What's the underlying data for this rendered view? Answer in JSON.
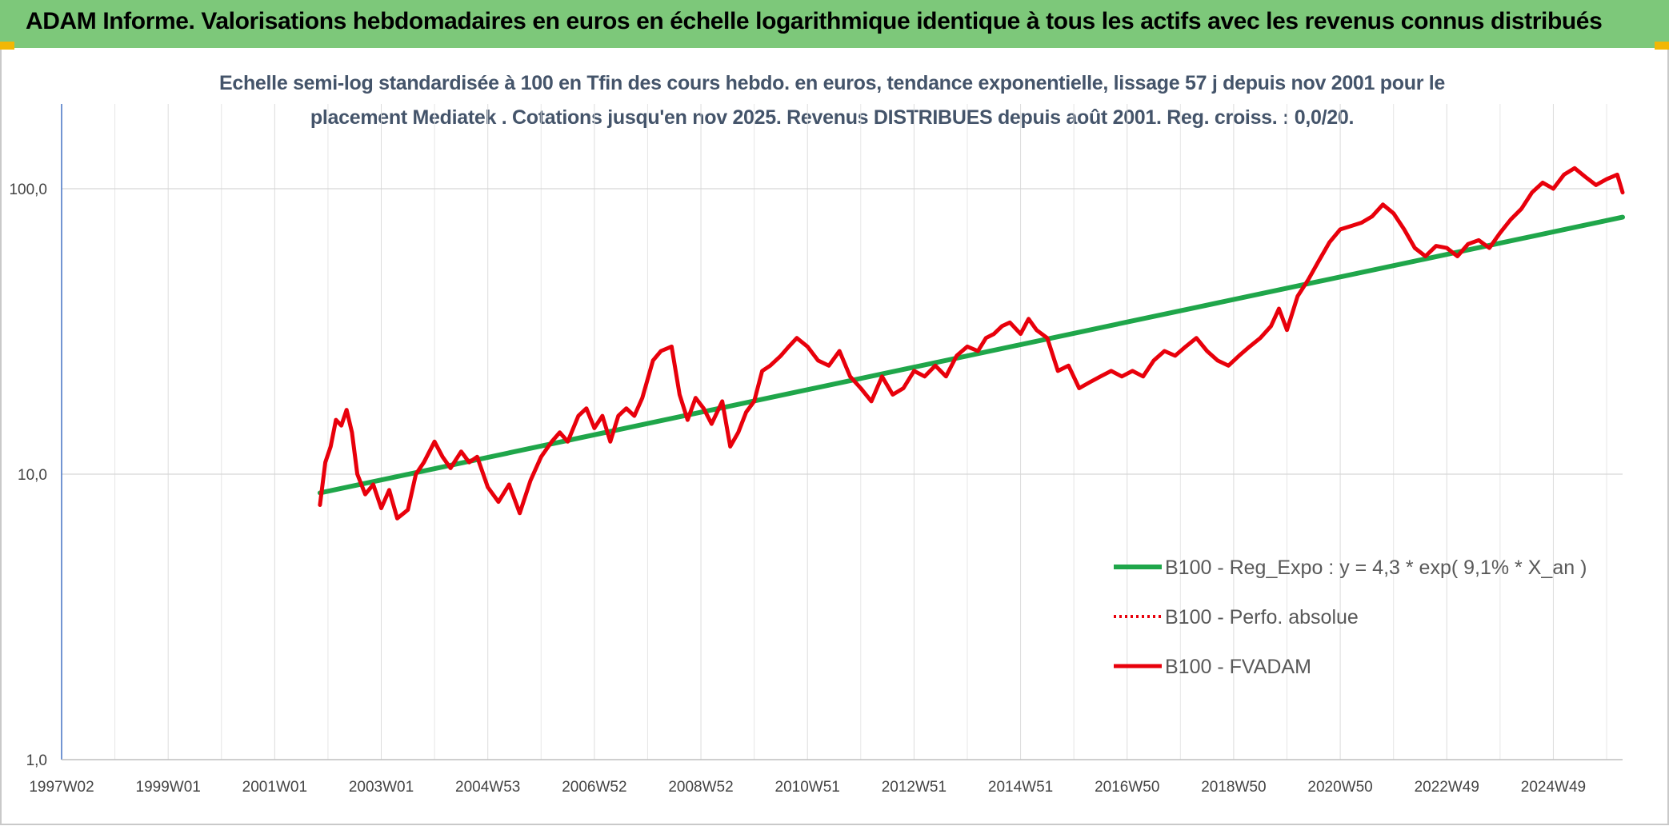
{
  "header": {
    "title": "ADAM Informe. Valorisations hebdomadaires en euros en échelle logarithmique identique à tous les actifs avec les revenus connus distribués"
  },
  "chart_data": {
    "type": "line",
    "title_lines": [
      "Echelle semi-log standardisée à 100 en Tfin des cours hebdo. en euros, tendance exponentielle, lissage 57 j depuis nov 2001 pour le",
      "placement Mediatek . Cotations jusqu'en nov 2025. Revenus DISTRIBUES depuis août 2001. Reg. croiss. : 0,0/20."
    ],
    "y_scale": "log",
    "ylim": [
      1,
      200
    ],
    "y_ticks": [
      1,
      10,
      100
    ],
    "y_tick_labels": [
      "1,0",
      "10,0",
      "100,0"
    ],
    "xlim": [
      1997.0,
      2026.3
    ],
    "x_ticks": [
      1997.0,
      1999.0,
      2001.0,
      2003.0,
      2005.0,
      2007.0,
      2009.0,
      2011.0,
      2013.0,
      2015.0,
      2017.0,
      2019.0,
      2021.0,
      2023.0,
      2025.0
    ],
    "x_tick_labels": [
      "1997W02",
      "1999W01",
      "2001W01",
      "2003W01",
      "2004W53",
      "2006W52",
      "2008W52",
      "2010W51",
      "2012W51",
      "2014W51",
      "2016W50",
      "2018W50",
      "2020W50",
      "2022W49",
      "2024W49"
    ],
    "grid": true,
    "legend_position": "bottom-right",
    "colors": {
      "trend": "#1fa64a",
      "fvadam": "#e8000b",
      "perfo": "#e8000b"
    },
    "series": [
      {
        "name": "B100 - Reg_Expo : y = 4,3 * exp( 9,1% *  X_an )",
        "style": "solid-green",
        "x": [
          2001.85,
          2026.3
        ],
        "values": [
          8.6,
          79.5
        ]
      },
      {
        "name": "B100 - Perfo. absolue",
        "style": "dotted-red",
        "x": [],
        "values": []
      },
      {
        "name": "B100 - FVADAM",
        "style": "solid-red",
        "x": [
          2001.85,
          2001.95,
          2002.05,
          2002.15,
          2002.25,
          2002.35,
          2002.45,
          2002.55,
          2002.7,
          2002.85,
          2003.0,
          2003.15,
          2003.3,
          2003.5,
          2003.65,
          2003.8,
          2004.0,
          2004.15,
          2004.3,
          2004.5,
          2004.65,
          2004.8,
          2005.0,
          2005.2,
          2005.4,
          2005.6,
          2005.8,
          2006.0,
          2006.2,
          2006.35,
          2006.5,
          2006.7,
          2006.85,
          2007.0,
          2007.15,
          2007.3,
          2007.45,
          2007.6,
          2007.75,
          2007.9,
          2008.1,
          2008.25,
          2008.45,
          2008.6,
          2008.75,
          2008.9,
          2009.05,
          2009.2,
          2009.4,
          2009.55,
          2009.7,
          2009.85,
          2010.0,
          2010.15,
          2010.3,
          2010.5,
          2010.65,
          2010.8,
          2011.0,
          2011.2,
          2011.4,
          2011.6,
          2011.8,
          2012.0,
          2012.2,
          2012.4,
          2012.6,
          2012.8,
          2013.0,
          2013.2,
          2013.4,
          2013.6,
          2013.8,
          2014.0,
          2014.2,
          2014.35,
          2014.5,
          2014.65,
          2014.8,
          2015.0,
          2015.15,
          2015.3,
          2015.5,
          2015.7,
          2015.9,
          2016.1,
          2016.3,
          2016.5,
          2016.7,
          2016.9,
          2017.1,
          2017.3,
          2017.5,
          2017.7,
          2017.9,
          2018.1,
          2018.3,
          2018.5,
          2018.7,
          2018.9,
          2019.1,
          2019.3,
          2019.5,
          2019.7,
          2019.85,
          2020.0,
          2020.2,
          2020.4,
          2020.6,
          2020.8,
          2021.0,
          2021.2,
          2021.4,
          2021.6,
          2021.8,
          2022.0,
          2022.2,
          2022.4,
          2022.6,
          2022.8,
          2023.0,
          2023.2,
          2023.4,
          2023.6,
          2023.8,
          2024.0,
          2024.2,
          2024.4,
          2024.6,
          2024.8,
          2025.0,
          2025.2,
          2025.4,
          2025.6,
          2025.8,
          2026.0,
          2026.2,
          2026.3
        ],
        "values": [
          7.8,
          11.0,
          12.5,
          15.5,
          14.8,
          16.8,
          14.0,
          10.0,
          8.5,
          9.2,
          7.6,
          8.8,
          7.0,
          7.5,
          10.0,
          11.0,
          13.0,
          11.5,
          10.5,
          12.0,
          11.0,
          11.5,
          9.0,
          8.0,
          9.2,
          7.3,
          9.5,
          11.5,
          13.0,
          14.0,
          13.0,
          16.0,
          17.0,
          14.5,
          16.0,
          13.0,
          16.0,
          17.0,
          16.0,
          18.5,
          25.0,
          27.0,
          28.0,
          19.0,
          15.5,
          18.5,
          17.0,
          15.0,
          18.0,
          12.5,
          14.0,
          16.5,
          18.0,
          23.0,
          24.0,
          26.0,
          28.0,
          30.0,
          28.0,
          25.0,
          24.0,
          27.0,
          22.0,
          20.0,
          18.0,
          22.0,
          19.0,
          20.0,
          23.0,
          22.0,
          24.0,
          22.0,
          26.0,
          28.0,
          27.0,
          30.0,
          31.0,
          33.0,
          34.0,
          31.0,
          35.0,
          32.0,
          30.0,
          23.0,
          24.0,
          20.0,
          21.0,
          22.0,
          23.0,
          22.0,
          23.0,
          22.0,
          25.0,
          27.0,
          26.0,
          28.0,
          30.0,
          27.0,
          25.0,
          24.0,
          26.0,
          28.0,
          30.0,
          33.0,
          38.0,
          32.0,
          42.0,
          48.0,
          56.0,
          65.0,
          72.0,
          74.0,
          76.0,
          80.0,
          88.0,
          82.0,
          72.0,
          62.0,
          58.0,
          63.0,
          62.0,
          58.0,
          64.0,
          66.0,
          62.0,
          70.0,
          78.0,
          85.0,
          97.0,
          105.0,
          100.0,
          112.0,
          118.0,
          110.0,
          103.0,
          108.0,
          112.0,
          97.0
        ]
      }
    ]
  }
}
